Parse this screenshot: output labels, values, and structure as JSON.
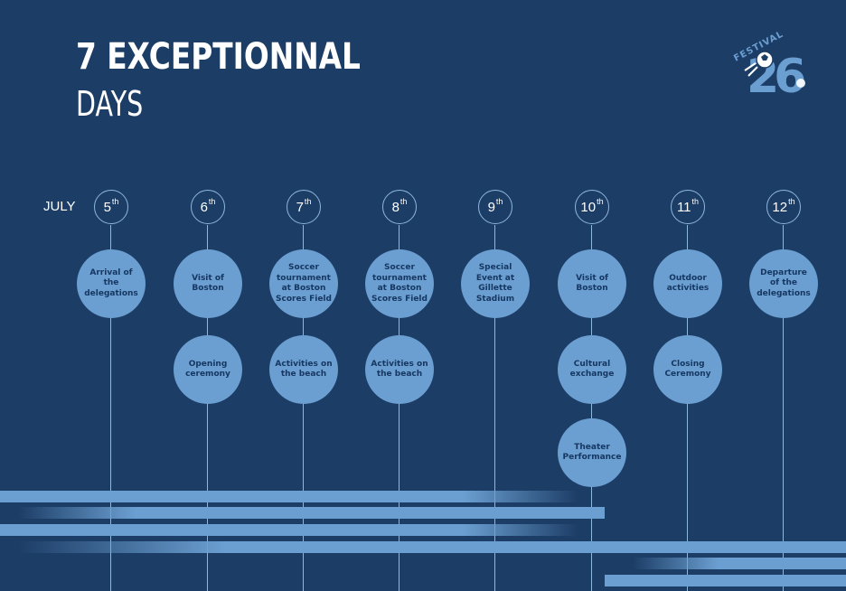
{
  "title_line1": "7 EXCEPTIONNAL",
  "title_line2": "DAYS",
  "logo": {
    "word": "FESTIVAL",
    "number": "26"
  },
  "month": "JULY",
  "days": [
    {
      "num": "5",
      "suffix": "th",
      "events": [
        "Arrival of the delegations"
      ]
    },
    {
      "num": "6",
      "suffix": "th",
      "events": [
        "Visit of Boston",
        "Opening ceremony"
      ]
    },
    {
      "num": "7",
      "suffix": "th",
      "events": [
        "Soccer tournament at Boston Scores Field",
        "Activities on the beach"
      ]
    },
    {
      "num": "8",
      "suffix": "th",
      "events": [
        "Soccer tournament at Boston Scores Field",
        "Activities on the beach"
      ]
    },
    {
      "num": "9",
      "suffix": "th",
      "events": [
        "Special Event at Gillette Stadium"
      ]
    },
    {
      "num": "10",
      "suffix": "th",
      "events": [
        "Visit of Boston",
        "Cultural exchange",
        "Theater Performance"
      ]
    },
    {
      "num": "11",
      "suffix": "th",
      "events": [
        "Outdoor activities",
        "Closing Ceremony"
      ]
    },
    {
      "num": "12",
      "suffix": "th",
      "events": [
        "Departure of the delegations"
      ]
    }
  ],
  "colors": {
    "background": "#1c3d66",
    "circle": "#6b9fd1",
    "line": "#8db7dd"
  }
}
